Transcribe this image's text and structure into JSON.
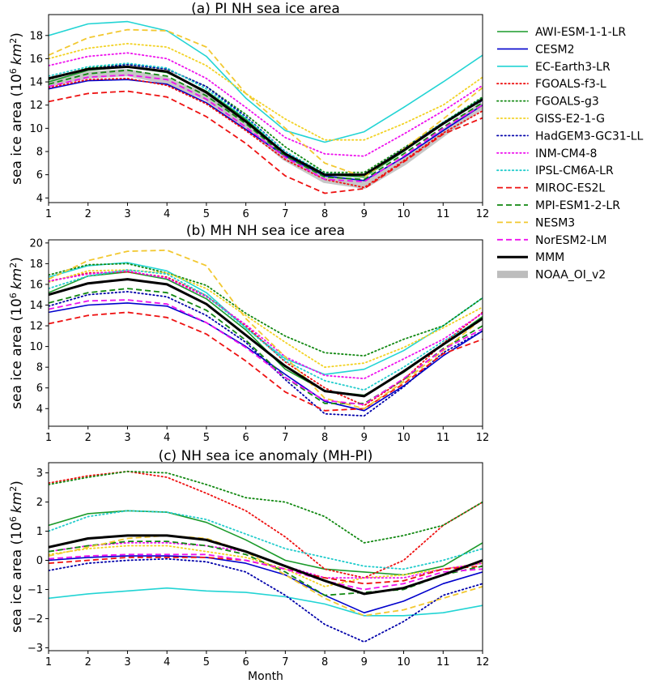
{
  "figure": {
    "xlabel": "Month"
  },
  "legend": {
    "placement": "upper-right, outside panels"
  },
  "models": [
    {
      "name": "AWI-ESM-1-1-LR",
      "color": "#1a9a2a",
      "dash": "solid",
      "width": 1.6
    },
    {
      "name": "CESM2",
      "color": "#0000cc",
      "dash": "solid",
      "width": 1.6
    },
    {
      "name": "EC-Earth3-LR",
      "color": "#22d4d4",
      "dash": "solid",
      "width": 1.6
    },
    {
      "name": "FGOALS-f3-L",
      "color": "#ee1111",
      "dash": "dotted",
      "width": 1.8
    },
    {
      "name": "FGOALS-g3",
      "color": "#118811",
      "dash": "dotted",
      "width": 1.8
    },
    {
      "name": "GISS-E2-1-G",
      "color": "#f2d224",
      "dash": "dotted",
      "width": 1.8
    },
    {
      "name": "HadGEM3-GC31-LL",
      "color": "#0000aa",
      "dash": "dotted",
      "width": 1.8
    },
    {
      "name": "INM-CM4-8",
      "color": "#ee11ee",
      "dash": "dotted",
      "width": 1.8
    },
    {
      "name": "IPSL-CM6A-LR",
      "color": "#22cccc",
      "dash": "dotted",
      "width": 1.8
    },
    {
      "name": "MIROC-ES2L",
      "color": "#ee1111",
      "dash": "dashed",
      "width": 1.8
    },
    {
      "name": "MPI-ESM1-2-LR",
      "color": "#118811",
      "dash": "dashed",
      "width": 1.8
    },
    {
      "name": "NESM3",
      "color": "#f2c830",
      "dash": "dashed",
      "width": 1.8
    },
    {
      "name": "NorESM2-LM",
      "color": "#ee11ee",
      "dash": "dashed",
      "width": 1.8
    },
    {
      "name": "MMM",
      "color": "#000000",
      "dash": "solid",
      "width": 3
    },
    {
      "name": "NOAA_OI_v2",
      "color": "#bdbdbd",
      "dash": "solid",
      "width": 9,
      "label_color": "#888888"
    }
  ],
  "chart_data": [
    {
      "type": "line",
      "title": "(a) PI NH sea ice area",
      "ylabel": "sea ice area (10",
      "ylabel_sup": "6",
      "ylabel_unit": "km",
      "ylabel_unit_sup": "2",
      "ylabel_close": ")",
      "xlim": [
        1,
        12
      ],
      "ylim": [
        3.6,
        19.8
      ],
      "xticks": [
        1,
        2,
        3,
        4,
        5,
        6,
        7,
        8,
        9,
        10,
        11,
        12
      ],
      "yticks": [
        4,
        6,
        8,
        10,
        12,
        14,
        16,
        18
      ],
      "grid": false,
      "x": [
        1,
        2,
        3,
        4,
        5,
        6,
        7,
        8,
        9,
        10,
        11,
        12
      ],
      "series": [
        {
          "name": "AWI-ESM-1-1-LR",
          "values": [
            14.0,
            15.0,
            15.3,
            14.8,
            13.2,
            10.8,
            7.8,
            6.0,
            5.8,
            8.0,
            10.5,
            12.5
          ]
        },
        {
          "name": "CESM2",
          "values": [
            13.4,
            14.1,
            14.2,
            13.8,
            12.2,
            9.9,
            7.6,
            5.9,
            5.5,
            7.5,
            9.8,
            12.0
          ]
        },
        {
          "name": "EC-Earth3-LR",
          "values": [
            18.0,
            19.0,
            19.2,
            18.4,
            16.2,
            12.6,
            9.8,
            8.8,
            9.7,
            11.8,
            14.0,
            16.3
          ]
        },
        {
          "name": "FGOALS-f3-L",
          "values": [
            13.5,
            14.2,
            14.3,
            13.7,
            12.1,
            9.8,
            7.3,
            5.6,
            4.9,
            7.2,
            9.6,
            11.5
          ]
        },
        {
          "name": "FGOALS-g3",
          "values": [
            14.2,
            15.2,
            15.5,
            15.1,
            13.6,
            11.2,
            8.4,
            6.2,
            6.2,
            8.3,
            10.5,
            12.7
          ]
        },
        {
          "name": "GISS-E2-1-G",
          "values": [
            16.0,
            16.9,
            17.3,
            17.0,
            15.4,
            13.0,
            10.8,
            9.0,
            9.0,
            10.4,
            12.0,
            14.4
          ]
        },
        {
          "name": "HadGEM3-GC31-LL",
          "values": [
            14.3,
            15.1,
            15.5,
            15.1,
            13.6,
            11.0,
            8.0,
            6.0,
            6.0,
            8.2,
            10.5,
            12.4
          ]
        },
        {
          "name": "INM-CM4-8",
          "values": [
            15.4,
            16.2,
            16.5,
            16.0,
            14.3,
            11.8,
            9.2,
            7.8,
            7.6,
            9.5,
            11.5,
            13.7
          ]
        },
        {
          "name": "IPSL-CM6A-LR",
          "values": [
            14.5,
            15.3,
            15.6,
            15.2,
            13.4,
            10.9,
            8.0,
            6.1,
            6.0,
            8.1,
            10.5,
            12.6
          ]
        },
        {
          "name": "MIROC-ES2L",
          "values": [
            12.3,
            13.0,
            13.2,
            12.7,
            11.0,
            8.7,
            5.9,
            4.4,
            4.8,
            7.1,
            9.5,
            10.9
          ]
        },
        {
          "name": "MPI-ESM1-2-LR",
          "values": [
            13.8,
            14.7,
            15.0,
            14.5,
            12.8,
            10.4,
            7.6,
            5.8,
            5.6,
            7.8,
            10.1,
            12.2
          ]
        },
        {
          "name": "NESM3",
          "values": [
            16.3,
            17.8,
            18.5,
            18.4,
            17.0,
            13.0,
            10.0,
            7.0,
            5.8,
            8.2,
            10.8,
            13.5
          ]
        },
        {
          "name": "NorESM2-LM",
          "values": [
            13.6,
            14.4,
            14.6,
            14.2,
            12.5,
            10.1,
            7.5,
            5.6,
            5.4,
            7.6,
            10.0,
            12.0
          ]
        },
        {
          "name": "MMM",
          "values": [
            14.3,
            15.1,
            15.3,
            14.9,
            13.1,
            10.6,
            7.8,
            6.0,
            6.0,
            8.1,
            10.4,
            12.5
          ]
        },
        {
          "name": "NOAA_OI_v2",
          "values": [
            13.9,
            14.6,
            14.8,
            14.1,
            12.7,
            10.3,
            7.5,
            5.6,
            5.1,
            7.1,
            9.6,
            12.0
          ]
        }
      ]
    },
    {
      "type": "line",
      "title": "(b) MH NH sea ice area",
      "ylabel": "sea ice area (10",
      "ylabel_sup": "6",
      "ylabel_unit": "km",
      "ylabel_unit_sup": "2",
      "ylabel_close": ")",
      "xlim": [
        1,
        12
      ],
      "ylim": [
        2.3,
        20.3
      ],
      "xticks": [
        1,
        2,
        3,
        4,
        5,
        6,
        7,
        8,
        9,
        10,
        11,
        12
      ],
      "yticks": [
        4,
        6,
        8,
        10,
        12,
        14,
        16,
        18,
        20
      ],
      "grid": false,
      "x": [
        1,
        2,
        3,
        4,
        5,
        6,
        7,
        8,
        9,
        10,
        11,
        12
      ],
      "series": [
        {
          "name": "AWI-ESM-1-1-LR",
          "values": [
            15.2,
            16.8,
            17.2,
            16.5,
            14.6,
            11.6,
            7.8,
            5.7,
            5.3,
            7.5,
            10.2,
            12.9
          ]
        },
        {
          "name": "CESM2",
          "values": [
            13.3,
            14.0,
            14.2,
            13.9,
            12.3,
            10.0,
            7.3,
            4.7,
            3.8,
            6.2,
            9.1,
            11.5
          ]
        },
        {
          "name": "EC-Earth3-LR",
          "values": [
            16.7,
            17.8,
            18.1,
            17.3,
            15.2,
            11.8,
            8.8,
            7.3,
            7.8,
            9.6,
            12.0,
            14.7
          ]
        },
        {
          "name": "FGOALS-f3-L",
          "values": [
            16.3,
            17.1,
            17.2,
            16.7,
            14.9,
            12.0,
            8.5,
            6.0,
            4.3,
            6.8,
            10.3,
            13.3
          ]
        },
        {
          "name": "FGOALS-g3",
          "values": [
            16.9,
            17.9,
            18.0,
            17.1,
            15.9,
            13.2,
            11.0,
            9.4,
            9.1,
            10.7,
            12.0,
            14.7
          ]
        },
        {
          "name": "GISS-E2-1-G",
          "values": [
            16.2,
            17.3,
            17.4,
            17.1,
            15.6,
            13.0,
            10.4,
            8.0,
            8.4,
            9.9,
            11.8,
            13.8
          ]
        },
        {
          "name": "HadGEM3-GC31-LL",
          "values": [
            13.9,
            15.0,
            15.3,
            14.8,
            13.0,
            10.4,
            6.8,
            3.5,
            3.3,
            6.1,
            9.4,
            11.5
          ]
        },
        {
          "name": "INM-CM4-8",
          "values": [
            16.3,
            17.0,
            17.3,
            16.6,
            14.8,
            12.1,
            9.0,
            7.2,
            6.9,
            8.8,
            10.7,
            13.2
          ]
        },
        {
          "name": "IPSL-CM6A-LR",
          "values": [
            15.6,
            16.8,
            17.4,
            17.0,
            14.9,
            11.8,
            8.6,
            6.7,
            5.8,
            8.0,
            10.5,
            12.7
          ]
        },
        {
          "name": "MIROC-ES2L",
          "values": [
            12.2,
            13.0,
            13.3,
            12.8,
            11.2,
            8.6,
            5.6,
            3.8,
            4.0,
            6.4,
            9.3,
            10.7
          ]
        },
        {
          "name": "MPI-ESM1-2-LR",
          "values": [
            14.2,
            15.2,
            15.6,
            15.2,
            13.5,
            10.6,
            7.0,
            4.5,
            4.5,
            6.8,
            9.8,
            12.0
          ]
        },
        {
          "name": "NESM3",
          "values": [
            16.5,
            18.3,
            19.2,
            19.3,
            17.8,
            12.7,
            9.0,
            5.0,
            4.0,
            6.6,
            9.6,
            12.7
          ]
        },
        {
          "name": "NorESM2-LM",
          "values": [
            13.6,
            14.4,
            14.5,
            14.1,
            12.3,
            9.9,
            7.0,
            4.8,
            4.4,
            6.9,
            9.7,
            11.7
          ]
        },
        {
          "name": "MMM",
          "values": [
            15.0,
            16.1,
            16.5,
            16.0,
            14.1,
            11.1,
            8.1,
            5.7,
            5.2,
            7.6,
            10.2,
            12.7
          ]
        }
      ]
    },
    {
      "type": "line",
      "title": "(c) NH sea ice anomaly (MH-PI)",
      "ylabel": "sea ice area (10",
      "ylabel_sup": "6",
      "ylabel_unit": "km",
      "ylabel_unit_sup": "2",
      "ylabel_close": ")",
      "xlabel": "Month",
      "xlim": [
        1,
        12
      ],
      "ylim": [
        -3.1,
        3.35
      ],
      "xticks": [
        1,
        2,
        3,
        4,
        5,
        6,
        7,
        8,
        9,
        10,
        11,
        12
      ],
      "yticks": [
        -3,
        -2,
        -1,
        0,
        1,
        2,
        3
      ],
      "grid": false,
      "x": [
        1,
        2,
        3,
        4,
        5,
        6,
        7,
        8,
        9,
        10,
        11,
        12
      ],
      "series": [
        {
          "name": "AWI-ESM-1-1-LR",
          "values": [
            1.2,
            1.6,
            1.7,
            1.65,
            1.3,
            0.7,
            0.0,
            -0.3,
            -0.4,
            -0.5,
            -0.2,
            0.6
          ]
        },
        {
          "name": "CESM2",
          "values": [
            0.0,
            0.1,
            0.15,
            0.15,
            0.1,
            -0.1,
            -0.5,
            -1.2,
            -1.8,
            -1.4,
            -0.8,
            -0.4
          ]
        },
        {
          "name": "EC-Earth3-LR",
          "values": [
            -1.3,
            -1.15,
            -1.05,
            -0.95,
            -1.05,
            -1.1,
            -1.25,
            -1.5,
            -1.9,
            -1.9,
            -1.8,
            -1.55
          ]
        },
        {
          "name": "FGOALS-f3-L",
          "values": [
            2.65,
            2.9,
            3.05,
            2.85,
            2.3,
            1.7,
            0.8,
            -0.3,
            -0.6,
            0.0,
            1.2,
            2.0
          ]
        },
        {
          "name": "FGOALS-g3",
          "values": [
            2.6,
            2.85,
            3.05,
            3.0,
            2.6,
            2.15,
            2.0,
            1.5,
            0.6,
            0.85,
            1.2,
            2.0
          ]
        },
        {
          "name": "GISS-E2-1-G",
          "values": [
            0.2,
            0.4,
            0.5,
            0.5,
            0.3,
            0.1,
            -0.3,
            -0.9,
            -0.6,
            -0.5,
            -0.3,
            -0.1
          ]
        },
        {
          "name": "HadGEM3-GC31-LL",
          "values": [
            -0.35,
            -0.1,
            0.0,
            0.05,
            -0.05,
            -0.4,
            -1.2,
            -2.2,
            -2.8,
            -2.1,
            -1.2,
            -0.8
          ]
        },
        {
          "name": "INM-CM4-8",
          "values": [
            0.3,
            0.5,
            0.6,
            0.6,
            0.5,
            0.3,
            -0.2,
            -0.6,
            -0.6,
            -0.6,
            -0.3,
            -0.1
          ]
        },
        {
          "name": "IPSL-CM6A-LR",
          "values": [
            1.0,
            1.5,
            1.7,
            1.65,
            1.4,
            0.9,
            0.4,
            0.1,
            -0.2,
            -0.3,
            0.0,
            0.4
          ]
        },
        {
          "name": "MIROC-ES2L",
          "values": [
            -0.1,
            0.0,
            0.1,
            0.1,
            0.1,
            0.0,
            -0.3,
            -0.6,
            -0.8,
            -0.7,
            -0.3,
            -0.2
          ]
        },
        {
          "name": "MPI-ESM1-2-LR",
          "values": [
            0.3,
            0.5,
            0.65,
            0.65,
            0.5,
            0.2,
            -0.4,
            -1.2,
            -1.1,
            -1.0,
            -0.5,
            -0.2
          ]
        },
        {
          "name": "NESM3",
          "values": [
            0.15,
            0.45,
            0.75,
            0.85,
            0.75,
            0.3,
            -0.5,
            -1.3,
            -1.9,
            -1.7,
            -1.3,
            -0.9
          ]
        },
        {
          "name": "NorESM2-LM",
          "values": [
            0.05,
            0.15,
            0.2,
            0.2,
            0.2,
            0.0,
            -0.3,
            -0.7,
            -1.0,
            -0.8,
            -0.4,
            -0.3
          ]
        },
        {
          "name": "MMM",
          "values": [
            0.45,
            0.75,
            0.85,
            0.85,
            0.7,
            0.3,
            -0.2,
            -0.7,
            -1.15,
            -0.95,
            -0.5,
            0.0
          ]
        }
      ]
    }
  ]
}
